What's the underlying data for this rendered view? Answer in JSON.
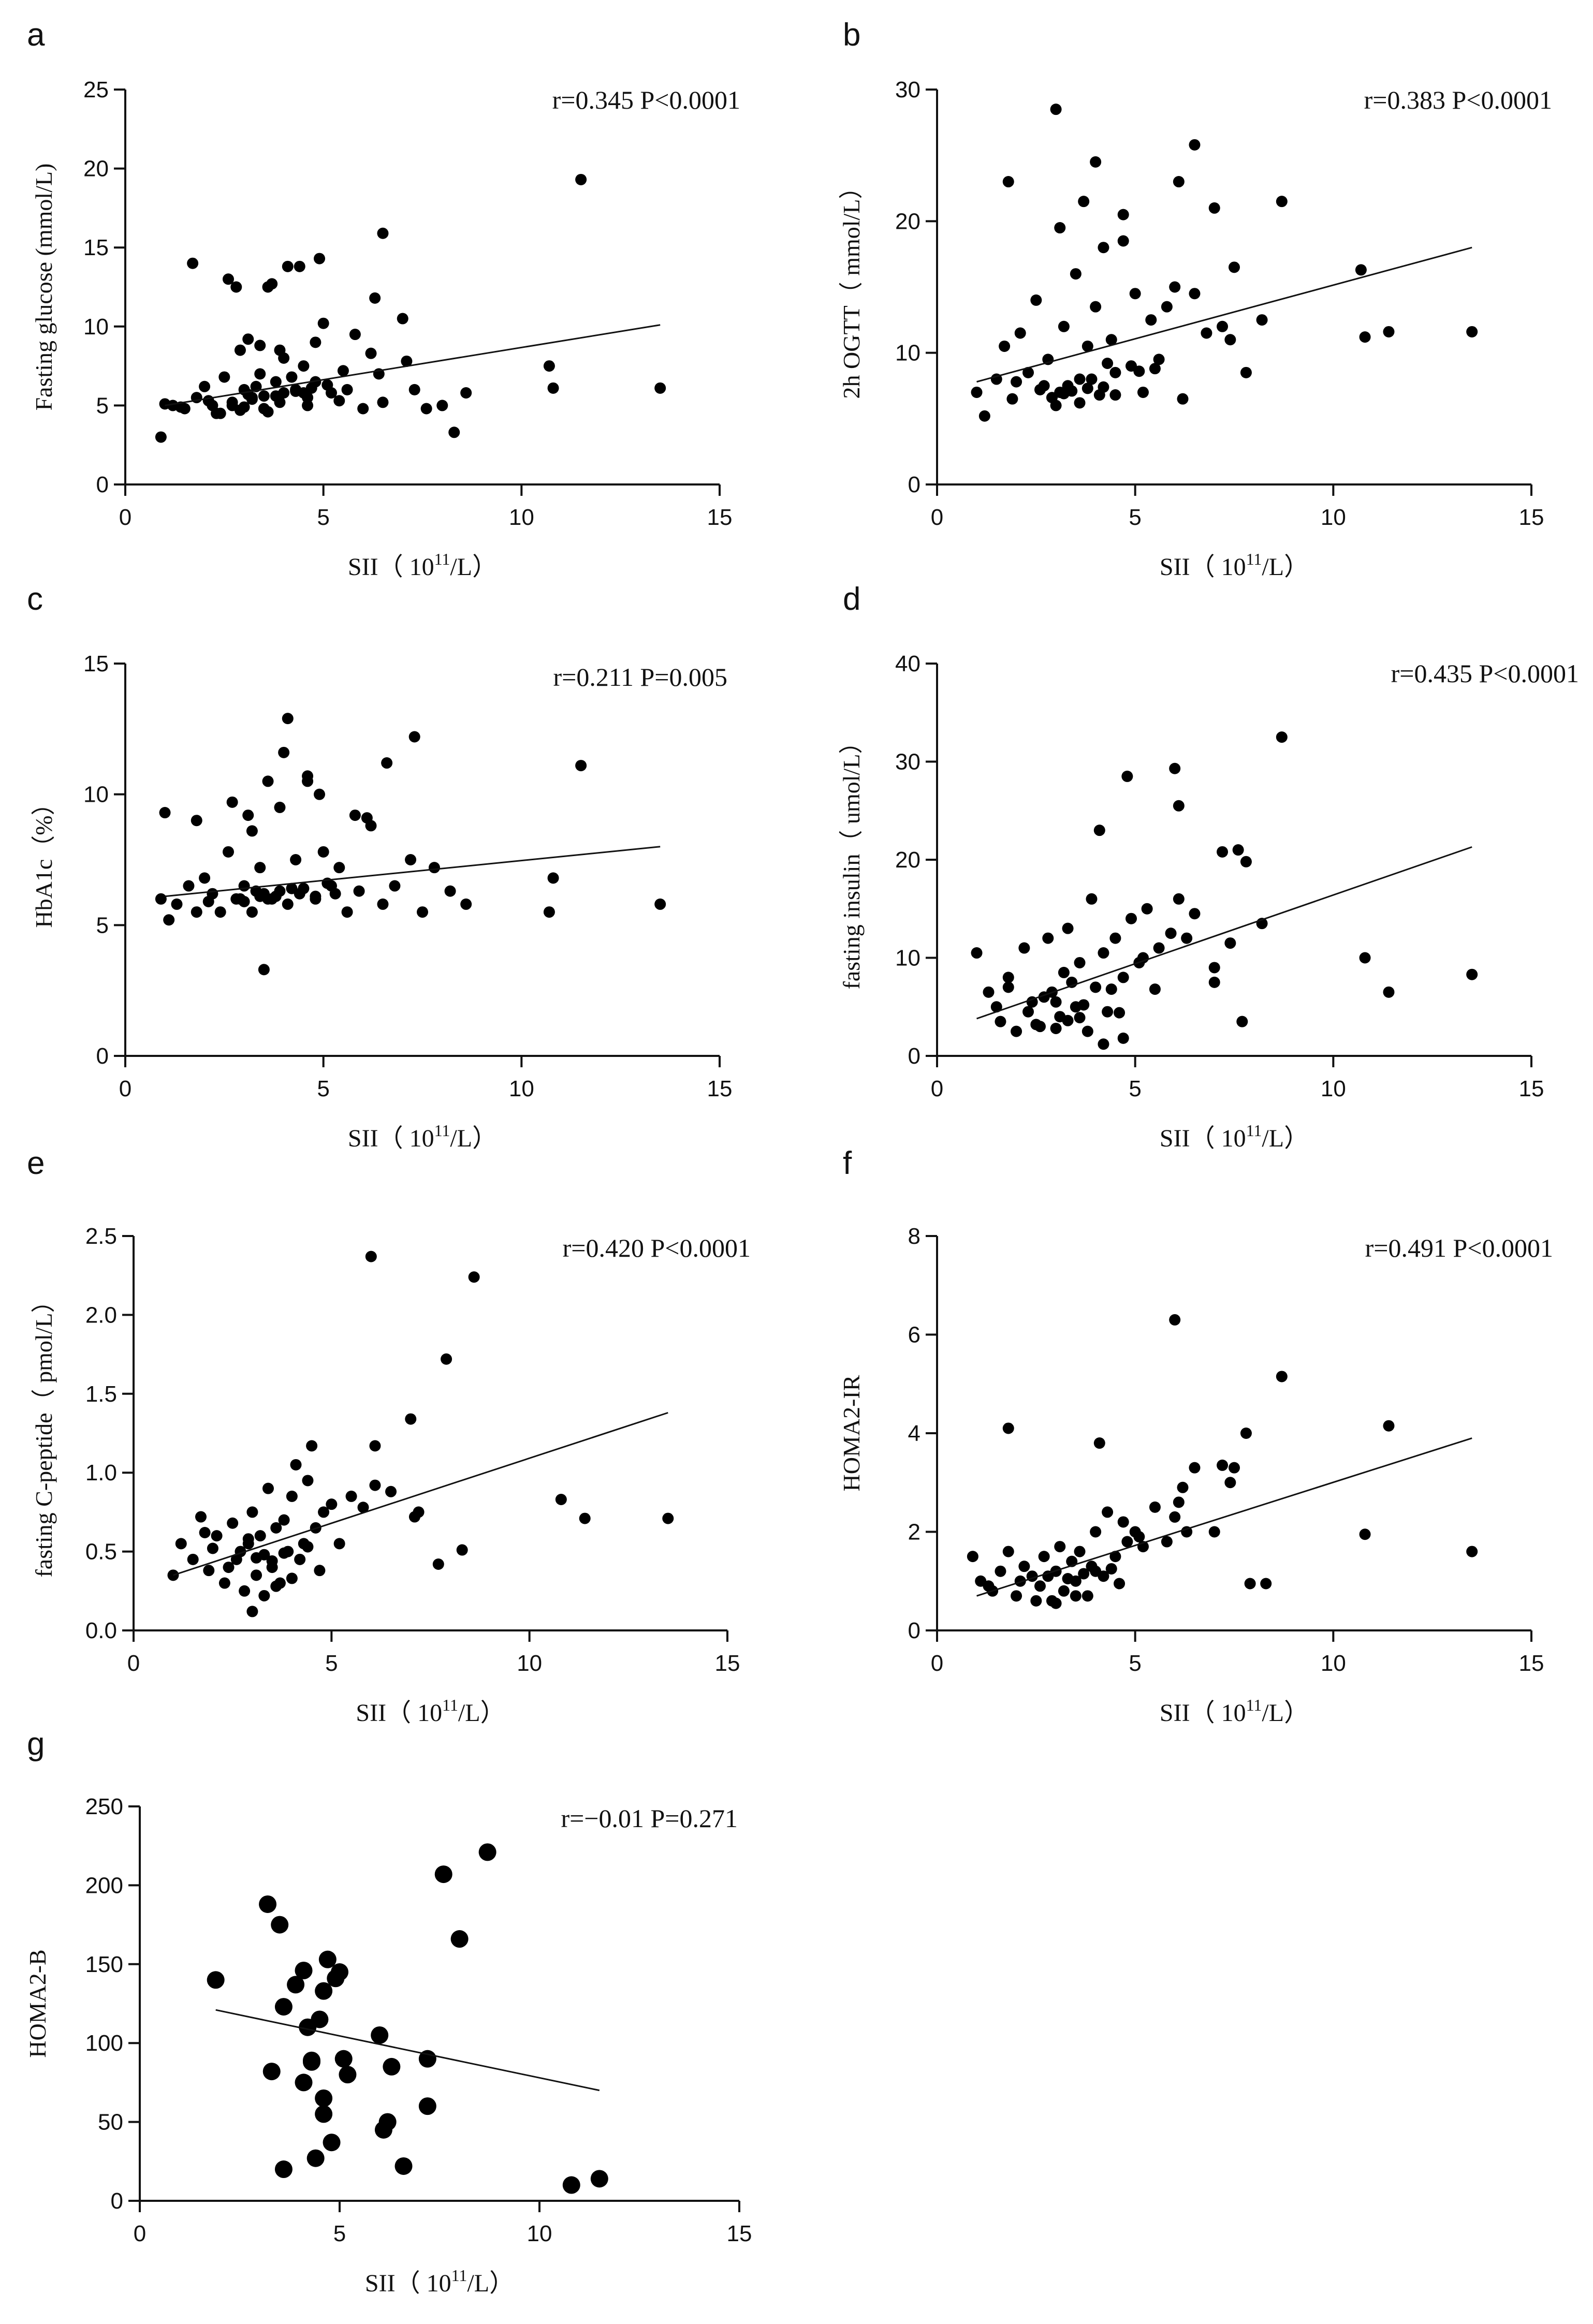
{
  "chart_data": [
    {
      "panel": "a",
      "type": "scatter",
      "annotation": "r=0.345 P<0.0001",
      "xlabel": "SII（ 10",
      "xlabel_sup": "11",
      "xlabel_tail": "/L）",
      "ylabel": "Fasting glucose (mmol/L)",
      "xlim": [
        0,
        15
      ],
      "ylim": [
        0,
        25
      ],
      "xticks": [
        0,
        5,
        10,
        15
      ],
      "yticks": [
        0,
        5,
        10,
        15,
        20,
        25
      ],
      "x": [
        0.9,
        1.2,
        1.5,
        1.8,
        2.0,
        2.2,
        2.4,
        2.5,
        2.7,
        2.9,
        3.0,
        3.1,
        3.2,
        3.4,
        3.5,
        3.6,
        3.8,
        3.9,
        4.0,
        4.1,
        4.3,
        4.5,
        4.6,
        4.8,
        5.0,
        5.2,
        5.5,
        5.8,
        6.0,
        6.3,
        6.5,
        7.0,
        7.3,
        7.6,
        8.0,
        8.3,
        8.6,
        1.7,
        2.8,
        3.7,
        4.4,
        4.9,
        2.6,
        3.3,
        4.2,
        5.1,
        6.4,
        3.0,
        3.5,
        4.0,
        4.7,
        2.3,
        2.9,
        3.6,
        4.6,
        5.4,
        1.0,
        1.4,
        2.1,
        2.7,
        3.2,
        3.8,
        4.5,
        5.6,
        6.2,
        7.1,
        3.4,
        3.9,
        4.8,
        11.5,
        10.7,
        10.8,
        13.5,
        6.5,
        4.3,
        3.1
      ],
      "y": [
        3.0,
        5.0,
        4.8,
        5.5,
        6.2,
        5.0,
        4.5,
        6.8,
        5.2,
        8.5,
        6.0,
        9.2,
        5.5,
        7.0,
        4.8,
        12.5,
        6.5,
        5.2,
        8.0,
        13.8,
        6.0,
        7.5,
        5.5,
        6.5,
        10.2,
        5.8,
        7.2,
        9.5,
        4.8,
        11.8,
        5.2,
        10.5,
        6.0,
        4.8,
        5.0,
        3.3,
        5.8,
        14.0,
        12.5,
        12.7,
        13.8,
        14.3,
        13.0,
        6.2,
        6.8,
        6.3,
        7.0,
        4.9,
        5.6,
        5.8,
        6.1,
        4.5,
        4.7,
        4.6,
        5.0,
        5.3,
        5.1,
        4.9,
        5.3,
        5.0,
        5.4,
        5.6,
        5.8,
        6.0,
        8.3,
        7.8,
        8.8,
        8.5,
        9.0,
        19.3,
        7.5,
        6.1,
        6.1,
        15.9,
        5.9,
        5.7
      ],
      "fit": {
        "x": [
          1.0,
          13.5
        ],
        "y": [
          5.0,
          10.1
        ]
      }
    },
    {
      "panel": "b",
      "type": "scatter",
      "annotation": "r=0.383 P<0.0001",
      "xlabel": "SII（ 10",
      "xlabel_sup": "11",
      "xlabel_tail": "/L）",
      "ylabel": "2h OGTT（ mmol/L）",
      "xlim": [
        0,
        15
      ],
      "ylim": [
        0,
        30
      ],
      "xticks": [
        0,
        5,
        10,
        15
      ],
      "yticks": [
        0,
        10,
        20,
        30
      ],
      "x": [
        1.0,
        1.2,
        1.5,
        1.7,
        1.9,
        2.1,
        2.3,
        2.5,
        2.7,
        2.8,
        3.0,
        3.1,
        3.2,
        3.3,
        3.5,
        3.6,
        3.7,
        3.8,
        4.0,
        4.1,
        4.2,
        4.4,
        4.5,
        4.7,
        4.9,
        5.0,
        5.2,
        5.4,
        5.6,
        5.8,
        6.0,
        6.2,
        6.5,
        6.8,
        7.2,
        7.5,
        7.8,
        8.2,
        8.7,
        1.8,
        3.0,
        4.0,
        4.7,
        6.1,
        6.5,
        7.0,
        3.3,
        3.9,
        4.5,
        2.9,
        3.4,
        4.2,
        5.5,
        2.0,
        2.6,
        3.2,
        3.8,
        4.3,
        5.1,
        10.8,
        11.4,
        13.5,
        10.7,
        7.4,
        3.1,
        3.6
      ],
      "y": [
        7.0,
        5.2,
        8.0,
        10.5,
        6.5,
        11.5,
        8.5,
        14.0,
        7.5,
        9.5,
        6.0,
        19.5,
        12.0,
        7.2,
        16.0,
        8.0,
        21.5,
        10.5,
        13.5,
        6.8,
        18.0,
        11.0,
        8.5,
        20.5,
        9.0,
        14.5,
        7.0,
        12.5,
        9.5,
        13.5,
        15.0,
        6.5,
        14.5,
        11.5,
        12.0,
        16.5,
        8.5,
        12.5,
        21.5,
        23.0,
        28.5,
        24.5,
        18.5,
        23.0,
        25.8,
        21.0,
        7.5,
        8.0,
        6.8,
        6.6,
        7.1,
        7.4,
        8.8,
        7.8,
        7.2,
        6.9,
        7.3,
        9.2,
        8.6,
        11.2,
        11.6,
        11.6,
        16.3,
        11.0,
        7.0,
        6.2
      ],
      "fit": {
        "x": [
          1.0,
          13.5
        ],
        "y": [
          7.8,
          18.0
        ]
      }
    },
    {
      "panel": "c",
      "type": "scatter",
      "annotation": "r=0.211 P=0.005",
      "xlabel": "SII（ 10",
      "xlabel_sup": "11",
      "xlabel_tail": "/L）",
      "ylabel": "HbA1c（%）",
      "xlim": [
        0,
        15
      ],
      "ylim": [
        0,
        15
      ],
      "xticks": [
        0,
        5,
        10,
        15
      ],
      "yticks": [
        0,
        5,
        10,
        15
      ],
      "x": [
        0.9,
        1.1,
        1.3,
        1.6,
        1.8,
        2.0,
        2.2,
        2.4,
        2.6,
        2.8,
        3.0,
        3.1,
        3.2,
        3.4,
        3.5,
        3.6,
        3.7,
        3.9,
        4.0,
        4.1,
        4.3,
        4.4,
        4.6,
        4.8,
        5.0,
        5.2,
        5.4,
        5.6,
        5.9,
        6.2,
        6.5,
        6.8,
        7.2,
        7.5,
        7.8,
        8.2,
        8.6,
        1.0,
        1.8,
        2.7,
        3.2,
        3.9,
        4.1,
        4.6,
        4.9,
        6.6,
        7.3,
        3.4,
        3.0,
        3.6,
        4.2,
        4.8,
        5.3,
        2.1,
        2.9,
        3.3,
        3.8,
        4.5,
        5.1,
        11.5,
        10.7,
        10.8,
        13.5,
        5.8,
        6.1,
        3.5
      ],
      "y": [
        6.0,
        5.2,
        5.8,
        6.5,
        5.5,
        6.8,
        6.2,
        5.5,
        7.8,
        6.0,
        6.5,
        9.2,
        5.5,
        7.2,
        3.3,
        10.5,
        6.0,
        6.3,
        11.6,
        5.8,
        7.5,
        6.2,
        10.7,
        6.0,
        7.8,
        6.5,
        7.2,
        5.5,
        6.3,
        8.8,
        5.8,
        6.5,
        7.5,
        5.5,
        7.2,
        6.3,
        5.8,
        9.3,
        9.0,
        9.7,
        8.6,
        9.5,
        12.9,
        10.5,
        10.0,
        11.2,
        12.2,
        6.1,
        5.9,
        6.0,
        6.4,
        6.1,
        6.2,
        5.9,
        6.0,
        6.3,
        6.1,
        6.4,
        6.6,
        11.1,
        5.5,
        6.8,
        5.8,
        9.2,
        9.1,
        6.2
      ],
      "fit": {
        "x": [
          1.0,
          13.5
        ],
        "y": [
          6.1,
          8.0
        ]
      }
    },
    {
      "panel": "d",
      "type": "scatter",
      "annotation": "r=0.435 P<0.0001",
      "xlabel": "SII（ 10",
      "xlabel_sup": "11",
      "xlabel_tail": "/L）",
      "ylabel": "fasting insulin（ umol/L）",
      "xlim": [
        0,
        15
      ],
      "ylim": [
        0,
        40
      ],
      "xticks": [
        0,
        5,
        10,
        15
      ],
      "yticks": [
        0,
        10,
        20,
        30,
        40
      ],
      "x": [
        1.0,
        1.3,
        1.6,
        1.8,
        2.0,
        2.2,
        2.4,
        2.6,
        2.8,
        2.9,
        3.1,
        3.2,
        3.3,
        3.5,
        3.6,
        3.8,
        3.9,
        4.0,
        4.2,
        4.3,
        4.5,
        4.7,
        4.9,
        5.1,
        5.3,
        5.6,
        5.9,
        6.1,
        6.5,
        7.0,
        7.4,
        7.7,
        8.2,
        8.7,
        1.5,
        2.3,
        2.7,
        3.0,
        3.4,
        3.7,
        4.1,
        4.4,
        4.8,
        5.2,
        6.0,
        6.1,
        7.6,
        7.8,
        7.2,
        4.2,
        4.7,
        10.8,
        11.4,
        13.5,
        2.5,
        3.3,
        4.6,
        5.5,
        6.3,
        7.0,
        1.8,
        3.0,
        3.6
      ],
      "y": [
        10.5,
        6.5,
        3.5,
        8.0,
        2.5,
        11.0,
        5.5,
        3.0,
        12.0,
        6.5,
        4.0,
        8.5,
        13.0,
        5.0,
        9.5,
        2.5,
        16.0,
        7.0,
        10.5,
        4.5,
        12.0,
        8.0,
        14.0,
        9.5,
        15.0,
        11.0,
        12.5,
        16.0,
        14.5,
        7.5,
        11.5,
        3.5,
        13.5,
        32.5,
        5.0,
        4.5,
        6.0,
        5.5,
        7.5,
        5.2,
        23.0,
        6.8,
        28.5,
        10.0,
        29.3,
        25.5,
        21.0,
        19.8,
        20.8,
        1.2,
        1.8,
        10.0,
        6.5,
        8.3,
        3.2,
        3.6,
        4.4,
        6.8,
        12.0,
        9.0,
        7.0,
        2.8,
        3.9
      ],
      "fit": {
        "x": [
          1.0,
          13.5
        ],
        "y": [
          3.8,
          21.3
        ]
      }
    },
    {
      "panel": "e",
      "type": "scatter",
      "annotation": "r=0.420 P<0.0001",
      "xlabel": "SII（ 10",
      "xlabel_sup": "11",
      "xlabel_tail": "/L）",
      "ylabel": "fasting C-peptide（ pmol/L）",
      "xlim": [
        0,
        15
      ],
      "ylim": [
        0,
        2.5
      ],
      "xticks": [
        0,
        5,
        10,
        15
      ],
      "yticks": [
        0.0,
        0.5,
        1.0,
        1.5,
        2.0,
        2.5
      ],
      "ytick_decimals": 1,
      "x": [
        1.0,
        1.2,
        1.5,
        1.7,
        1.9,
        2.1,
        2.3,
        2.5,
        2.6,
        2.8,
        2.9,
        3.0,
        3.1,
        3.2,
        3.3,
        3.4,
        3.5,
        3.6,
        3.7,
        3.8,
        3.9,
        4.0,
        4.1,
        4.3,
        4.4,
        4.6,
        4.8,
        5.0,
        5.2,
        5.5,
        5.8,
        6.1,
        6.5,
        7.0,
        7.2,
        7.7,
        8.3,
        1.8,
        2.4,
        2.7,
        3.0,
        3.3,
        3.6,
        4.0,
        4.2,
        4.5,
        6.0,
        6.1,
        7.1,
        7.9,
        8.6,
        10.8,
        11.4,
        13.5,
        2.0,
        2.9,
        3.5,
        4.7,
        3.1,
        3.8,
        4.4
      ],
      "y": [
        0.35,
        0.55,
        0.45,
        0.72,
        0.38,
        0.6,
        0.3,
        0.68,
        0.45,
        0.25,
        0.55,
        0.75,
        0.35,
        0.6,
        0.48,
        0.9,
        0.4,
        0.65,
        0.3,
        0.7,
        0.5,
        0.85,
        1.05,
        0.55,
        0.95,
        0.65,
        0.75,
        0.8,
        0.55,
        0.85,
        0.78,
        0.92,
        0.88,
        1.34,
        0.75,
        0.42,
        0.51,
        0.62,
        0.4,
        0.5,
        0.12,
        0.22,
        0.28,
        0.33,
        0.45,
        1.17,
        2.37,
        1.17,
        0.72,
        1.72,
        2.24,
        0.83,
        0.71,
        0.71,
        0.52,
        0.58,
        0.44,
        0.38,
        0.46,
        0.49,
        0.53
      ],
      "fit": {
        "x": [
          1.0,
          13.5
        ],
        "y": [
          0.35,
          1.38
        ]
      }
    },
    {
      "panel": "f",
      "type": "scatter",
      "annotation": "r=0.491 P<0.0001",
      "xlabel": "SII（ 10",
      "xlabel_sup": "11",
      "xlabel_tail": "/L）",
      "ylabel": "HOMA2-IR",
      "xlim": [
        0,
        15
      ],
      "ylim": [
        0,
        8
      ],
      "xticks": [
        0,
        5,
        10,
        15
      ],
      "yticks": [
        0,
        2,
        4,
        6,
        8
      ],
      "x": [
        0.9,
        1.1,
        1.4,
        1.6,
        1.8,
        2.0,
        2.2,
        2.4,
        2.6,
        2.7,
        2.9,
        3.0,
        3.1,
        3.2,
        3.4,
        3.5,
        3.6,
        3.8,
        3.9,
        4.0,
        4.2,
        4.3,
        4.5,
        4.7,
        4.8,
        5.0,
        5.2,
        5.5,
        5.8,
        6.0,
        6.2,
        6.5,
        7.0,
        7.4,
        7.8,
        8.3,
        8.7,
        1.8,
        4.1,
        6.0,
        6.1,
        7.5,
        7.9,
        10.8,
        11.4,
        13.5,
        3.3,
        3.7,
        4.4,
        2.5,
        3.0,
        3.5,
        4.6,
        1.3,
        2.1,
        2.8,
        4.0,
        5.1,
        6.3,
        7.2
      ],
      "y": [
        1.5,
        1.0,
        0.8,
        1.2,
        1.6,
        0.7,
        1.3,
        1.1,
        0.9,
        1.5,
        0.6,
        1.2,
        1.7,
        0.8,
        1.4,
        1.0,
        1.6,
        0.7,
        1.3,
        2.0,
        1.1,
        2.4,
        1.5,
        2.2,
        1.8,
        2.0,
        1.7,
        2.5,
        1.8,
        2.3,
        2.9,
        3.3,
        2.0,
        3.0,
        4.0,
        0.95,
        5.15,
        4.1,
        3.8,
        6.3,
        2.6,
        3.3,
        0.95,
        1.95,
        4.15,
        1.6,
        1.05,
        1.15,
        1.25,
        0.6,
        0.55,
        0.7,
        0.95,
        0.9,
        1.0,
        1.1,
        1.2,
        1.9,
        2.0,
        3.35
      ],
      "fit": {
        "x": [
          1.0,
          13.5
        ],
        "y": [
          0.7,
          3.9
        ]
      }
    },
    {
      "panel": "g",
      "type": "scatter",
      "annotation": "r=−0.01 P=0.271",
      "xlabel": "SII（ 10",
      "xlabel_sup": "11",
      "xlabel_tail": "/L）",
      "ylabel": "HOMA2-B",
      "xlim": [
        0,
        15
      ],
      "ylim": [
        0,
        250
      ],
      "xticks": [
        0,
        5,
        10,
        15
      ],
      "yticks": [
        0,
        50,
        100,
        150,
        200,
        250
      ],
      "x": [
        1.9,
        3.2,
        3.5,
        3.6,
        3.9,
        4.1,
        4.2,
        4.3,
        4.5,
        4.6,
        4.7,
        4.9,
        5.0,
        5.2,
        3.3,
        3.6,
        4.1,
        4.3,
        4.6,
        4.8,
        5.1,
        4.4,
        4.6,
        6.0,
        6.1,
        6.2,
        6.3,
        6.6,
        7.2,
        7.2,
        7.6,
        8.0,
        8.7,
        10.8,
        11.5
      ],
      "y": [
        140,
        188,
        175,
        123,
        137,
        146,
        110,
        88,
        115,
        133,
        153,
        141,
        145,
        80,
        82,
        20,
        75,
        89,
        55,
        37,
        90,
        27,
        65,
        105,
        45,
        50,
        85,
        22,
        90,
        60,
        207,
        166,
        221,
        10,
        14
      ],
      "fit": {
        "x": [
          1.9,
          11.5
        ],
        "y": [
          121,
          70
        ]
      }
    }
  ]
}
